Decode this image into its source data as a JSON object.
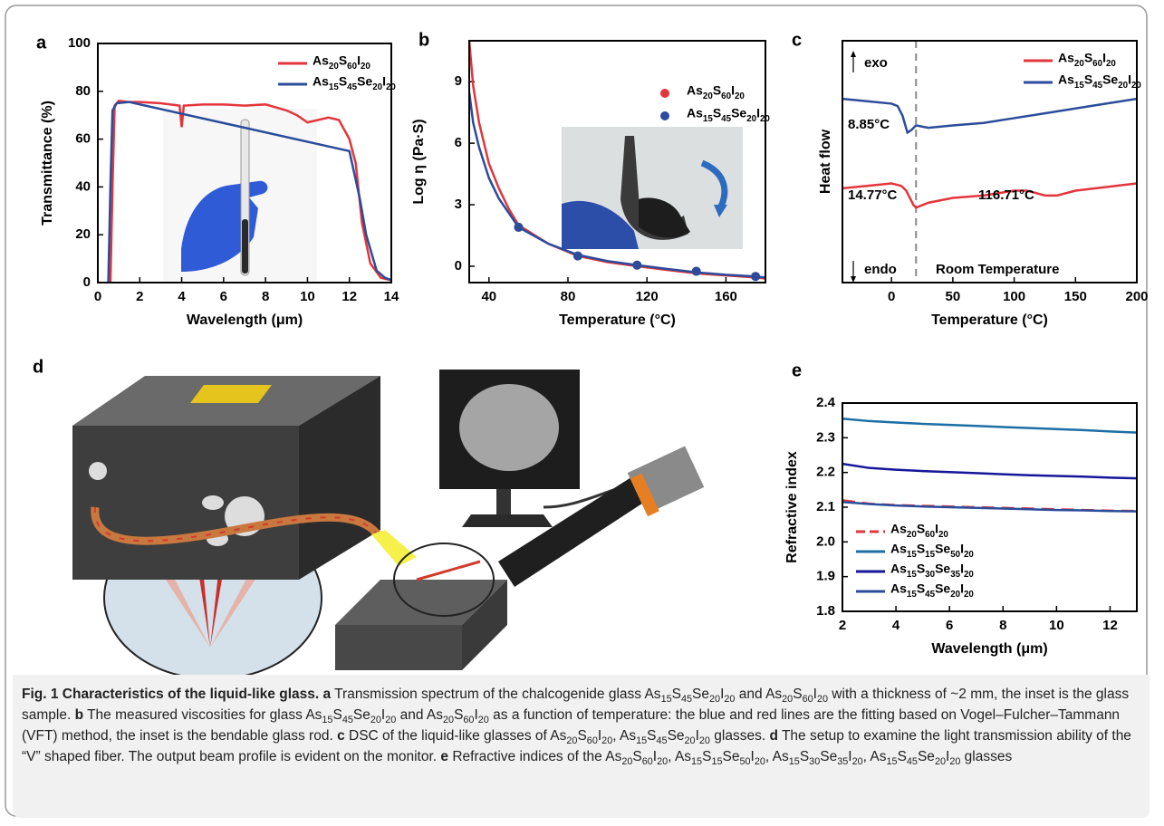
{
  "chart_data": [
    {
      "type": "line",
      "panel": "a",
      "xlabel": "Wavelength (μm)",
      "ylabel": "Transmittance (%)",
      "xlim": [
        0,
        14
      ],
      "xticks": [
        0,
        2,
        4,
        6,
        8,
        10,
        12,
        14
      ],
      "ylim": [
        0,
        100
      ],
      "yticks": [
        0,
        20,
        40,
        60,
        80,
        100
      ],
      "legend": "upper right",
      "series": [
        {
          "name": "As20S60I20",
          "color": "#e3353b",
          "x": [
            0.6,
            0.7,
            0.8,
            1,
            1.5,
            2,
            3,
            3.9,
            4,
            4.1,
            5,
            6,
            7,
            8,
            9,
            9.5,
            10,
            10.5,
            11,
            11.5,
            12,
            12.3,
            12.6,
            13,
            13.5,
            14
          ],
          "values": [
            0,
            40,
            74,
            76,
            75.5,
            75.5,
            75,
            74,
            65,
            74,
            74.5,
            74.5,
            74,
            74.5,
            72,
            70,
            67,
            68,
            69,
            68,
            60,
            50,
            25,
            8,
            2,
            1
          ]
        },
        {
          "name": "As15S45Se20I20",
          "color": "#2b4c9b",
          "x": [
            0.5,
            0.6,
            0.7,
            0.9,
            1.5,
            12,
            12.5,
            12.8,
            13.3,
            13.7,
            14
          ],
          "values": [
            0,
            40,
            72,
            75,
            75.5,
            55,
            35,
            20,
            5,
            2,
            1
          ]
        }
      ]
    },
    {
      "type": "line",
      "panel": "b",
      "xlabel": "Temperature (°C)",
      "ylabel": "Log η (Pa·S)",
      "xlim": [
        30,
        180
      ],
      "xticks": [
        40,
        80,
        120,
        160
      ],
      "ylim": [
        -0.8,
        11
      ],
      "yticks": [
        0,
        3,
        6,
        9
      ],
      "legend": "upper right",
      "series": [
        {
          "name": "As20S60I20",
          "color": "#e3353b",
          "x": [
            30,
            32,
            35,
            40,
            45,
            50,
            55,
            70,
            85,
            100,
            115,
            130,
            145,
            160,
            175,
            180
          ],
          "values": [
            11,
            8.8,
            7,
            5,
            3.8,
            2.8,
            2,
            1.1,
            0.5,
            0.2,
            0,
            -0.18,
            -0.35,
            -0.45,
            -0.55,
            -0.6
          ],
          "marker_x": [
            55,
            85,
            115,
            145,
            175
          ],
          "markers": [
            1.9,
            0.5,
            0.05,
            -0.25,
            -0.5
          ]
        },
        {
          "name": "As15S45Se20I20",
          "color": "#2b4c9b",
          "x": [
            30,
            32,
            35,
            40,
            45,
            50,
            55,
            70,
            85,
            100,
            115,
            130,
            145,
            160,
            175,
            180
          ],
          "values": [
            8.5,
            7,
            5.8,
            4.3,
            3.3,
            2.6,
            1.9,
            1.1,
            0.55,
            0.25,
            0.05,
            -0.13,
            -0.3,
            -0.42,
            -0.5,
            -0.55
          ],
          "marker_x": [
            55,
            85,
            115,
            145,
            175
          ],
          "markers": [
            1.9,
            0.5,
            0.05,
            -0.25,
            -0.5
          ]
        }
      ]
    },
    {
      "type": "line",
      "panel": "c",
      "xlabel": "Temperature (°C)",
      "ylabel": "Heat flow",
      "xlim": [
        -40,
        200
      ],
      "xticks": [
        0,
        50,
        100,
        150,
        200
      ],
      "ylim": [
        0,
        10
      ],
      "legend": "upper right",
      "vline": 20,
      "annotations": [
        "exo",
        "8.85°C",
        "14.77°C",
        "116.71°C",
        "endo",
        "Room Temperature"
      ],
      "series": [
        {
          "name": "As20S60I20",
          "color": "#e3353b",
          "x": [
            -40,
            -20,
            0,
            8,
            12,
            15,
            18,
            20,
            25,
            30,
            50,
            75,
            100,
            110,
            118,
            125,
            135,
            150,
            175,
            200
          ],
          "values": [
            3.9,
            4,
            4.1,
            4.0,
            3.8,
            3.5,
            3.2,
            3.1,
            3.2,
            3.3,
            3.5,
            3.6,
            3.8,
            3.8,
            3.7,
            3.6,
            3.6,
            3.8,
            3.95,
            4.1
          ]
        },
        {
          "name": "As15S45Se20I20",
          "color": "#2b4c9b",
          "x": [
            -40,
            -20,
            0,
            5,
            9,
            13,
            16,
            20,
            30,
            50,
            75,
            100,
            125,
            150,
            175,
            200
          ],
          "values": [
            7.6,
            7.5,
            7.4,
            7.3,
            6.9,
            6.2,
            6.3,
            6.5,
            6.4,
            6.5,
            6.6,
            6.8,
            7.0,
            7.2,
            7.4,
            7.6
          ]
        }
      ]
    },
    {
      "type": "line",
      "panel": "e",
      "xlabel": "Wavelength (μm)",
      "ylabel": "Refractive index",
      "xlim": [
        2,
        13
      ],
      "xticks": [
        2,
        4,
        6,
        8,
        10,
        12
      ],
      "ylim": [
        1.8,
        2.4
      ],
      "yticks": [
        1.8,
        1.9,
        {
          "value": 2,
          "label": "2.0"
        },
        2.1,
        2.2,
        2.3,
        2.4
      ],
      "legend": "lower left",
      "series": [
        {
          "name": "As20S60I20",
          "color": "#e3353b",
          "dash": true,
          "x": [
            2,
            3,
            4,
            5,
            6,
            7,
            8,
            9,
            10,
            11,
            12,
            13
          ],
          "values": [
            2.12,
            2.11,
            2.106,
            2.104,
            2.102,
            2.1,
            2.098,
            2.096,
            2.094,
            2.092,
            2.09,
            2.089
          ]
        },
        {
          "name": "As15S15Se50I20",
          "color": "#1c6ea4",
          "x": [
            2,
            3,
            4,
            5,
            6,
            7,
            8,
            9,
            10,
            11,
            12,
            13
          ],
          "values": [
            2.355,
            2.348,
            2.344,
            2.34,
            2.337,
            2.334,
            2.331,
            2.328,
            2.325,
            2.322,
            2.318,
            2.315
          ]
        },
        {
          "name": "As15S30Se35I20",
          "color": "#16169a",
          "x": [
            2,
            3,
            4,
            5,
            6,
            7,
            8,
            9,
            10,
            11,
            12,
            13
          ],
          "values": [
            2.225,
            2.213,
            2.208,
            2.204,
            2.201,
            2.198,
            2.195,
            2.192,
            2.19,
            2.188,
            2.185,
            2.183
          ]
        },
        {
          "name": "As15S45Se20I20",
          "color": "#2b4c9b",
          "x": [
            2,
            3,
            4,
            5,
            6,
            7,
            8,
            9,
            10,
            11,
            12,
            13
          ],
          "values": [
            2.115,
            2.109,
            2.105,
            2.102,
            2.1,
            2.098,
            2.096,
            2.094,
            2.092,
            2.091,
            2.089,
            2.088
          ]
        }
      ]
    }
  ],
  "illustration": {
    "panel": "d"
  },
  "caption": {
    "title": "Fig. 1 Characteristics of the liquid-like glass.",
    "parts": [
      {
        "label": "a",
        "text": "Transmission spectrum of the chalcogenide glass As15S45Se20I20 and As20S60I20 with a thickness of ~2 mm, the inset is the glass sample."
      },
      {
        "label": "b",
        "text": "The measured viscosities for glass As15S45Se20I20 and As20S60I20 as a function of temperature: the blue and red lines are the fitting based on Vogel–Fulcher–Tammann (VFT) method, the inset is the bendable glass rod."
      },
      {
        "label": "c",
        "text": "DSC of the liquid-like glasses of As20S60I20, As15S45Se20I20 glasses."
      },
      {
        "label": "d",
        "text": "The setup to examine the light transmission ability of the “V” shaped fiber. The output beam profile is evident on the monitor."
      },
      {
        "label": "e",
        "text": "Refractive indices of the As20S60I20, As15S15Se50I20, As15S30Se35I20, As15S45Se20I20 glasses"
      }
    ]
  }
}
